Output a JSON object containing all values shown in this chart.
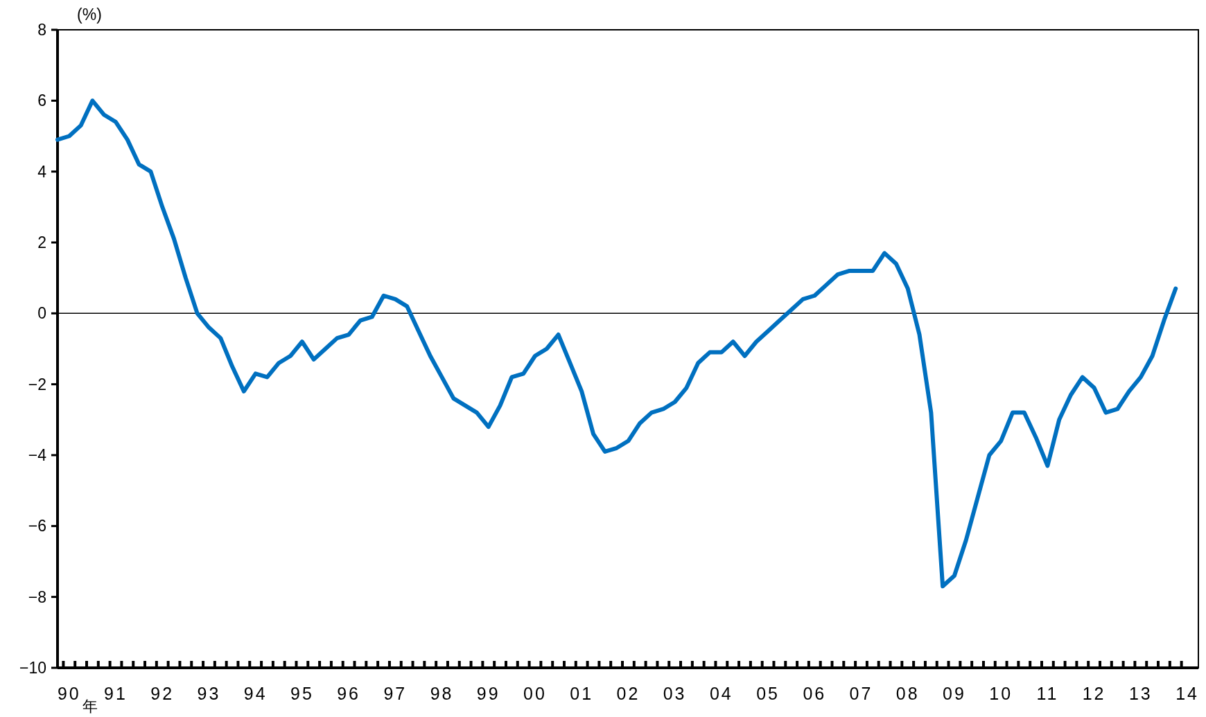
{
  "chart_data": {
    "type": "line",
    "ylabel": "(%)",
    "xlabel": "年",
    "ylim": [
      -10,
      8
    ],
    "yticks": [
      -10,
      -8,
      -6,
      -4,
      -2,
      0,
      2,
      4,
      6,
      8
    ],
    "categories": [
      null,
      "90",
      null,
      null,
      null,
      "91",
      null,
      null,
      null,
      "92",
      null,
      null,
      null,
      "93",
      null,
      null,
      null,
      "94",
      null,
      null,
      null,
      "95",
      null,
      null,
      null,
      "96",
      null,
      null,
      null,
      "97",
      null,
      null,
      null,
      "98",
      null,
      null,
      null,
      "99",
      null,
      null,
      null,
      "00",
      null,
      null,
      null,
      "01",
      null,
      null,
      null,
      "02",
      null,
      null,
      null,
      "03",
      null,
      null,
      null,
      "04",
      null,
      null,
      null,
      "05",
      null,
      null,
      null,
      "06",
      null,
      null,
      null,
      "07",
      null,
      null,
      null,
      "08",
      null,
      null,
      null,
      "09",
      null,
      null,
      null,
      "10",
      null,
      null,
      null,
      "11",
      null,
      null,
      null,
      "12",
      null,
      null,
      null,
      "13",
      null,
      null,
      null,
      "14"
    ],
    "series": [
      {
        "color": "#0070c0",
        "values": [
          4.9,
          5.0,
          5.3,
          6.0,
          5.6,
          5.4,
          4.9,
          4.2,
          4.0,
          3.0,
          2.1,
          1.0,
          0.0,
          -0.4,
          -0.7,
          -1.5,
          -2.2,
          -1.7,
          -1.8,
          -1.4,
          -1.2,
          -0.8,
          -1.3,
          -1.0,
          -0.7,
          -0.6,
          -0.2,
          -0.1,
          0.5,
          0.4,
          0.2,
          -0.5,
          -1.2,
          -1.8,
          -2.4,
          -2.6,
          -2.8,
          -3.2,
          -2.6,
          -1.8,
          -1.7,
          -1.2,
          -1.0,
          -0.6,
          -1.4,
          -2.2,
          -3.4,
          -3.9,
          -3.8,
          -3.6,
          -3.1,
          -2.8,
          -2.7,
          -2.5,
          -2.1,
          -1.4,
          -1.1,
          -1.1,
          -0.8,
          -1.2,
          -0.8,
          -0.5,
          -0.2,
          0.1,
          0.4,
          0.5,
          0.8,
          1.1,
          1.2,
          1.2,
          1.2,
          1.7,
          1.4,
          0.7,
          -0.6,
          -2.8,
          -7.7,
          -7.4,
          -6.4,
          -5.2,
          -4.0,
          -3.6,
          -2.8,
          -2.8,
          -3.5,
          -4.3,
          -3.0,
          -2.3,
          -1.8,
          -2.1,
          -2.8,
          -2.7,
          -2.2,
          -1.8,
          -1.2,
          -0.2,
          0.7,
          null
        ]
      }
    ],
    "ref_lines": [
      {
        "axis": "y",
        "value": 0,
        "color": "#000000"
      }
    ],
    "marker": "none",
    "line_style": "solid",
    "grid": false
  }
}
